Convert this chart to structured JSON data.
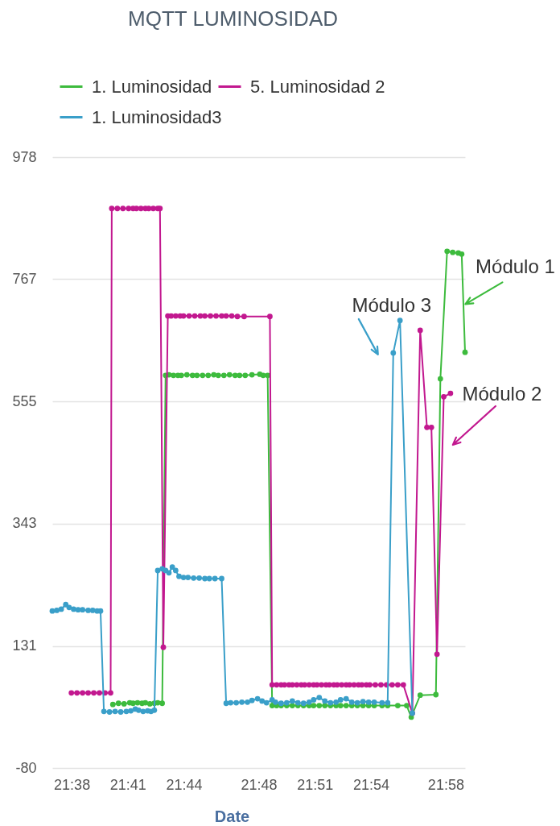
{
  "chart_data": {
    "type": "line",
    "title": "MQTT LUMINOSIDAD",
    "xlabel": "Date",
    "series": [
      {
        "name": "1. Luminosidad",
        "color": "#3dbb3d",
        "x": [
          21.67,
          21.675,
          21.68,
          21.685,
          21.688,
          21.692,
          21.696,
          21.699,
          21.703,
          21.707,
          21.71,
          21.714,
          21.717,
          21.72,
          21.724,
          21.728,
          21.731,
          21.736,
          21.741,
          21.745,
          21.75,
          21.755,
          21.76,
          21.764,
          21.769,
          21.774,
          21.779,
          21.783,
          21.788,
          21.794,
          21.801,
          21.804,
          21.808,
          21.812,
          21.816,
          21.82,
          21.825,
          21.83,
          21.835,
          21.84,
          21.845,
          21.849,
          21.854,
          21.859,
          21.864,
          21.869,
          21.873,
          21.878,
          21.883,
          21.888,
          21.893,
          21.898,
          21.903,
          21.91,
          21.915,
          21.924,
          21.932,
          21.936,
          21.944,
          21.958,
          21.962,
          21.968,
          21.973,
          21.978,
          21.981,
          21.984
        ],
        "values": [
          30,
          32,
          31,
          33,
          32,
          33,
          32,
          33,
          31,
          32,
          33,
          32,
          600,
          601,
          600,
          600,
          600,
          601,
          600,
          600,
          600,
          600,
          601,
          600,
          600,
          601,
          600,
          600,
          600,
          601,
          602,
          600,
          600,
          28,
          28,
          28,
          28,
          28,
          28,
          28,
          28,
          28,
          28,
          28,
          28,
          28,
          28,
          28,
          28,
          28,
          28,
          28,
          28,
          28,
          28,
          28,
          28,
          8,
          46,
          47,
          594,
          815,
          813,
          812,
          810,
          640
        ]
      },
      {
        "name": "5. Luminosidad 2",
        "color": "#c2188f",
        "x": [
          21.633,
          21.638,
          21.643,
          21.648,
          21.653,
          21.658,
          21.663,
          21.668,
          21.669,
          21.674,
          21.679,
          21.684,
          21.688,
          21.691,
          21.695,
          21.699,
          21.702,
          21.706,
          21.71,
          21.712,
          21.715,
          21.719,
          21.722,
          21.726,
          21.73,
          21.733,
          21.738,
          21.743,
          21.748,
          21.752,
          21.757,
          21.762,
          21.767,
          21.771,
          21.776,
          21.781,
          21.787,
          21.81,
          21.812,
          21.816,
          21.82,
          21.823,
          21.827,
          21.83,
          21.834,
          21.838,
          21.841,
          21.845,
          21.849,
          21.852,
          21.856,
          21.86,
          21.863,
          21.867,
          21.87,
          21.874,
          21.878,
          21.881,
          21.885,
          21.889,
          21.892,
          21.896,
          21.899,
          21.904,
          21.909,
          21.914,
          21.919,
          21.924,
          21.929,
          21.937,
          21.944,
          21.95,
          21.954,
          21.959,
          21.965,
          21.971
        ],
        "values": [
          50,
          50,
          50,
          50,
          50,
          50,
          50,
          50,
          889,
          889,
          889,
          889,
          889,
          889,
          889,
          889,
          889,
          889,
          889,
          889,
          129,
          703,
          703,
          703,
          703,
          703,
          703,
          703,
          703,
          703,
          703,
          703,
          703,
          703,
          703,
          702,
          702,
          702,
          64,
          64,
          64,
          64,
          64,
          64,
          64,
          64,
          64,
          64,
          64,
          64,
          64,
          64,
          64,
          64,
          64,
          64,
          64,
          64,
          64,
          64,
          64,
          64,
          64,
          64,
          64,
          64,
          64,
          64,
          64,
          15,
          678,
          510,
          510,
          117,
          563,
          569
        ]
      },
      {
        "name": "1. Luminosidad3",
        "color": "#3a9fc9",
        "x": [
          21.616,
          21.62,
          21.624,
          21.628,
          21.631,
          21.635,
          21.639,
          21.643,
          21.648,
          21.652,
          21.656,
          21.659,
          21.662,
          21.667,
          21.672,
          21.677,
          21.682,
          21.686,
          21.69,
          21.693,
          21.697,
          21.701,
          21.704,
          21.707,
          21.71,
          21.714,
          21.717,
          21.72,
          21.723,
          21.726,
          21.729,
          21.733,
          21.737,
          21.742,
          21.747,
          21.752,
          21.756,
          21.761,
          21.767,
          21.771,
          21.775,
          21.78,
          21.785,
          21.79,
          21.794,
          21.799,
          21.803,
          21.807,
          21.812,
          21.815,
          21.82,
          21.825,
          21.83,
          21.835,
          21.84,
          21.845,
          21.849,
          21.854,
          21.859,
          21.864,
          21.869,
          21.873,
          21.878,
          21.883,
          21.888,
          21.893,
          21.898,
          21.903,
          21.91,
          21.915,
          21.92,
          21.926,
          21.937
        ],
        "values": [
          192,
          193,
          195,
          203,
          198,
          195,
          194,
          194,
          193,
          193,
          192,
          192,
          18,
          17,
          18,
          17,
          18,
          19,
          22,
          20,
          18,
          19,
          18,
          20,
          262,
          265,
          262,
          258,
          268,
          262,
          252,
          250,
          250,
          249,
          249,
          248,
          248,
          248,
          248,
          32,
          33,
          33,
          34,
          34,
          37,
          40,
          36,
          33,
          38,
          34,
          32,
          33,
          36,
          33,
          32,
          34,
          38,
          42,
          36,
          33,
          34,
          38,
          40,
          34,
          33,
          35,
          34,
          34,
          33,
          33,
          639,
          695,
          15
        ]
      }
    ],
    "xlim": [
      21.616,
      21.984
    ],
    "xticks": [
      {
        "value": 21.6333,
        "label": "21:38"
      },
      {
        "value": 21.6833,
        "label": "21:41"
      },
      {
        "value": 21.7333,
        "label": "21:44"
      },
      {
        "value": 21.8,
        "label": "21:48"
      },
      {
        "value": 21.85,
        "label": "21:51"
      },
      {
        "value": 21.9,
        "label": "21:54"
      },
      {
        "value": 21.9667,
        "label": "21:58"
      }
    ],
    "ylim": [
      -80,
      978
    ],
    "yticks": [
      -80,
      131,
      343,
      555,
      767,
      978
    ],
    "grid": "y",
    "legend": "top left",
    "marker": "circle",
    "line_style": "solid",
    "annotations": [
      {
        "text": "Módulo 1",
        "x": 21.98,
        "y": 722
      },
      {
        "text": "Módulo 3",
        "x": 21.92,
        "y": 639
      },
      {
        "text": "Módulo 2",
        "x": 21.971,
        "y": 569
      }
    ]
  }
}
